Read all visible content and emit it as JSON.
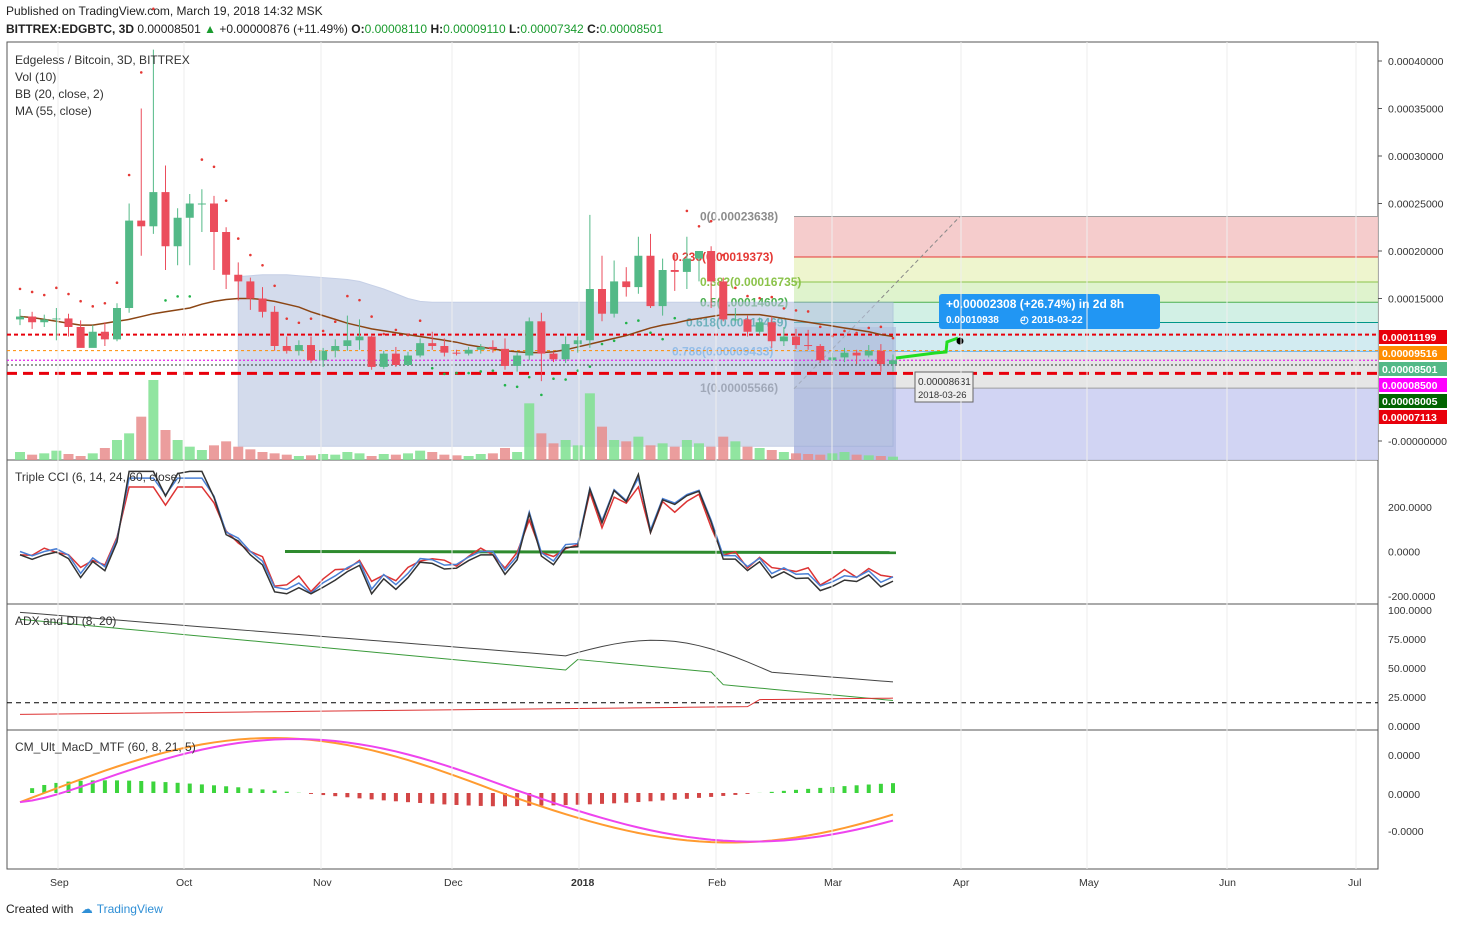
{
  "header": {
    "published": "Published on TradingView.com, March 19, 2018 14:32 MSK",
    "symbol": "BITTREX:EDGBTC, 3D",
    "last": "0.00008501",
    "change": "+0.00000876 (+11.49%)",
    "o_label": "O:",
    "o": "0.00008110",
    "h_label": "H:",
    "h": "0.00009110",
    "l_label": "L:",
    "l": "0.00007342",
    "c_label": "C:",
    "c": "0.00008501"
  },
  "legend": {
    "title": "Edgeless / Bitcoin, 3D, BITTREX",
    "vol": "Vol (10)",
    "bb": "BB (20, close, 2)",
    "ma": "MA (55, close)"
  },
  "panes": {
    "cci": "Triple CCI (6, 14, 24, 60, close)",
    "adx": "ADX and DI (8, 20)",
    "macd": "CM_Ult_MacD_MTF (60, 8, 21, 5)"
  },
  "colors": {
    "up": "#53b987",
    "down": "#eb4d5c",
    "ma": "#8b4513",
    "bb_fill": "#b7c4e0",
    "accent": "#2196f3"
  },
  "price_axis": {
    "min": -2e-05,
    "max": 0.00042,
    "ticks": [
      "0.00040000",
      "0.00035000",
      "0.00030000",
      "0.00025000",
      "0.00020000",
      "0.00015000",
      "-0.00000000"
    ],
    "tick_values": [
      0.0004,
      0.00035,
      0.0003,
      0.00025,
      0.0002,
      0.00015,
      0
    ]
  },
  "price_tags": [
    {
      "text": "0.00011199",
      "bg": "#e8000b"
    },
    {
      "text": "0.00009516",
      "bg": "#ff8c00"
    },
    {
      "text": "0.00008501",
      "bg": "#53b987"
    },
    {
      "text": "0.00008500",
      "bg": "#ff00ff"
    },
    {
      "text": "0.00008005",
      "bg": "#006400"
    },
    {
      "text": "0.00007113",
      "bg": "#e8000b"
    }
  ],
  "fib_labels": [
    {
      "text": "0(0.00023638)",
      "color": "#8c8c8c"
    },
    {
      "text": "0.236(0.00019373)",
      "color": "#e53935"
    },
    {
      "text": "0.382(0.00016735)",
      "color": "#8bc34a"
    },
    {
      "text": "0.5(0.00014602)",
      "color": "#4caf50"
    },
    {
      "text": "0.618(0.00012469)",
      "color": "#009688"
    },
    {
      "text": "0.786(0.00009433)",
      "color": "#64b5f6"
    },
    {
      "text": "1(0.00005566)",
      "color": "#7e7e7e"
    }
  ],
  "projection": {
    "line1": "+0.00002308 (+26.74%) in 2d 8h",
    "price": "0.00010938",
    "date": "2018-03-22"
  },
  "cursor_box": {
    "price": "0.00008631",
    "date": "2018-03-26"
  },
  "cci_axis": [
    "200.0000",
    "0.0000",
    "-200.0000"
  ],
  "adx_axis": [
    "100.0000",
    "75.0000",
    "50.0000",
    "25.0000",
    "0.0000"
  ],
  "macd_axis": [
    "0.0000",
    "0.0000",
    "-0.0000"
  ],
  "time_axis": [
    "Sep",
    "Oct",
    "Nov",
    "Dec",
    "2018",
    "Feb",
    "Mar",
    "Apr",
    "May",
    "Jun",
    "Jul"
  ],
  "chart_data": {
    "type": "candlestick",
    "title": "Edgeless / Bitcoin, 3D, BITTREX",
    "ylim": [
      -2e-05,
      0.00042
    ],
    "candles": [
      [
        0.000128,
        0.000139,
        0.000122,
        0.000131
      ],
      [
        0.000131,
        0.000136,
        0.000118,
        0.000125
      ],
      [
        0.000125,
        0.000133,
        0.00012,
        0.000128
      ],
      [
        0.000128,
        0.00014,
        0.000106,
        0.000129
      ],
      [
        0.000129,
        0.000134,
        0.00011,
        0.00012
      ],
      [
        0.00012,
        0.000127,
        0.000102,
        9.8e-05
      ],
      [
        9.8e-05,
        0.000122,
        9.9e-05,
        0.000115
      ],
      [
        0.000115,
        0.000125,
        0.0001,
        0.000107
      ],
      [
        0.000107,
        0.000145,
        0.000105,
        0.00014
      ],
      [
        0.00014,
        0.00025,
        0.000135,
        0.000232
      ],
      [
        0.000232,
        0.00035,
        0.000195,
        0.000226
      ],
      [
        0.000226,
        0.000412,
        0.000218,
        0.000262
      ],
      [
        0.000262,
        0.00029,
        0.00018,
        0.000205
      ],
      [
        0.000205,
        0.000245,
        0.000185,
        0.000235
      ],
      [
        0.000235,
        0.00026,
        0.000185,
        0.00025
      ],
      [
        0.00025,
        0.000265,
        0.00022,
        0.00025
      ],
      [
        0.00025,
        0.000258,
        0.00018,
        0.00022
      ],
      [
        0.00022,
        0.000225,
        0.00016,
        0.000175
      ],
      [
        0.000175,
        0.000188,
        0.000148,
        0.000168
      ],
      [
        0.000168,
        0.000172,
        0.000138,
        0.00015
      ],
      [
        0.00015,
        0.000162,
        0.00013,
        0.000136
      ],
      [
        0.000136,
        0.000142,
        9.5e-05,
        0.0001
      ],
      [
        0.0001,
        0.00011,
        9.2e-05,
        9.5e-05
      ],
      [
        9.5e-05,
        0.000106,
        9e-05,
        0.000101
      ],
      [
        0.000101,
        0.00011,
        8.2e-05,
        8.5e-05
      ],
      [
        8.5e-05,
        9.8e-05,
        7.8e-05,
        9.5e-05
      ],
      [
        9.5e-05,
        0.000107,
        8.8e-05,
        0.0001
      ],
      [
        0.0001,
        0.000132,
        9.5e-05,
        0.000106
      ],
      [
        0.000106,
        0.000128,
        9.6e-05,
        0.00011
      ],
      [
        0.00011,
        0.000112,
        7.5e-05,
        7.8e-05
      ],
      [
        7.8e-05,
        9.5e-05,
        7.6e-05,
        9.2e-05
      ],
      [
        9.2e-05,
        9.9e-05,
        7.8e-05,
        8e-05
      ],
      [
        8e-05,
        9.4e-05,
        7.9e-05,
        9e-05
      ],
      [
        9e-05,
        0.000108,
        8.8e-05,
        0.000103
      ],
      [
        0.000103,
        0.000115,
        9.6e-05,
        0.0001
      ],
      [
        0.0001,
        0.000108,
        8.9e-05,
        9.3e-05
      ],
      [
        9.3e-05,
        9.6e-05,
        9e-05,
        9.2e-05
      ],
      [
        9.2e-05,
        9.9e-05,
        9e-05,
        9.6e-05
      ],
      [
        9.6e-05,
        0.000102,
        9.2e-05,
        9.9e-05
      ],
      [
        9.9e-05,
        0.000106,
        9.3e-05,
        9.7e-05
      ],
      [
        9.7e-05,
        0.000108,
        7.5e-05,
        7.9e-05
      ],
      [
        7.9e-05,
        9.4e-05,
        7.3e-05,
        9e-05
      ],
      [
        9e-05,
        0.00013,
        8.5e-05,
        0.000126
      ],
      [
        0.000126,
        0.000135,
        6.3e-05,
        9.2e-05
      ],
      [
        9.2e-05,
        9.4e-05,
        8.3e-05,
        8.6e-05
      ],
      [
        8.6e-05,
        0.00011,
        8.2e-05,
        0.000102
      ],
      [
        0.000102,
        0.00011,
        9.3e-05,
        0.000106
      ],
      [
        0.000106,
        0.000238,
        9.8e-05,
        0.00016
      ],
      [
        0.00016,
        0.000195,
        0.000126,
        0.000134
      ],
      [
        0.000134,
        0.00019,
        0.00013,
        0.000168
      ],
      [
        0.000168,
        0.000183,
        0.000152,
        0.000162
      ],
      [
        0.000162,
        0.000215,
        0.000155,
        0.000195
      ],
      [
        0.000195,
        0.000218,
        0.00014,
        0.000142
      ],
      [
        0.000142,
        0.000192,
        0.000132,
        0.00018
      ],
      [
        0.00018,
        0.000196,
        0.000158,
        0.000178
      ],
      [
        0.000178,
        0.000215,
        0.00016,
        0.000192
      ],
      [
        0.000192,
        0.0002,
        0.000168,
        0.0002
      ],
      [
        0.0002,
        0.000205,
        0.00014,
        0.000168
      ],
      [
        0.000168,
        0.000172,
        0.000126,
        0.000128
      ],
      [
        0.000128,
        0.00014,
        0.000126,
        0.000128
      ],
      [
        0.000128,
        0.000132,
        0.00011,
        0.000115
      ],
      [
        0.000115,
        0.00013,
        0.000112,
        0.000125
      ],
      [
        0.000125,
        0.000131,
        9.8e-05,
        0.000105
      ],
      [
        0.000105,
        0.00012,
        0.0001,
        0.00011
      ],
      [
        0.00011,
        0.000118,
        9.7e-05,
        0.000101
      ],
      [
        0.000101,
        0.000117,
        9.6e-05,
        0.0001
      ],
      [
        0.0001,
        0.000102,
        8.2e-05,
        8.5e-05
      ],
      [
        8.5e-05,
        9.3e-05,
        8.2e-05,
        8.8e-05
      ],
      [
        8.8e-05,
        9.8e-05,
        8.3e-05,
        9.3e-05
      ],
      [
        9.3e-05,
        9.6e-05,
        8.1e-05,
        9e-05
      ],
      [
        9e-05,
        0.000101,
        8.8e-05,
        9.5e-05
      ],
      [
        9.5e-05,
        0.000102,
        7.3e-05,
        8.1e-05
      ],
      [
        8.1e-05,
        9.1e-05,
        7.3e-05,
        8.5e-05
      ]
    ],
    "bb_upper": [
      null,
      null,
      null,
      null,
      null,
      null,
      null,
      null,
      null,
      null,
      null,
      null,
      null,
      null,
      null,
      null,
      null,
      null,
      0.000173,
      0.000174,
      0.000175,
      0.000175,
      0.000175,
      0.000174,
      0.000173,
      0.000172,
      0.000171,
      0.00017,
      0.000168,
      0.000164,
      0.00016,
      0.000155,
      0.00015,
      0.000147,
      0.000146,
      0.000146,
      0.000146,
      0.000146,
      0.000146,
      0.000146,
      0.000146,
      0.000146,
      0.000146,
      0.000146,
      0.000146,
      0.000146,
      0.000146,
      0.000146,
      0.000146,
      0.000146,
      0.000146,
      0.000146,
      0.000146,
      0.000146,
      0.000146,
      0.000146,
      0.000146,
      0.000146,
      0.000146,
      0.000146,
      0.000146,
      0.000146,
      0.000146,
      0.000146,
      0.000146,
      0.000146,
      0.000146,
      0.000146,
      0.000146,
      0.000146,
      0.000146,
      0.000146,
      0.000146
    ],
    "ma55": [
      0.000131,
      0.00013,
      0.000128,
      0.000126,
      0.000124,
      0.000122,
      0.000122,
      0.000124,
      0.000126,
      0.000128,
      0.000131,
      0.000134,
      0.000136,
      0.000138,
      0.00014,
      0.000144,
      0.000147,
      0.000149,
      0.00015,
      0.00015,
      0.000149,
      0.000147,
      0.000144,
      0.000141,
      0.000136,
      0.000132,
      0.000128,
      0.000124,
      0.000121,
      0.000118,
      0.000116,
      0.000114,
      0.000112,
      0.00011,
      0.000108,
      0.000106,
      0.000104,
      0.000101,
      9.9e-05,
      9.7e-05,
      9.5e-05,
      9.4e-05,
      9.3e-05,
      9.3e-05,
      9.4e-05,
      9.6e-05,
      9.9e-05,
      0.000102,
      0.000105,
      0.000108,
      0.000111,
      0.000115,
      0.000119,
      0.000122,
      0.000124,
      0.000127,
      0.000129,
      0.000131,
      0.000133,
      0.000133,
      0.000133,
      0.000133,
      0.000131,
      0.000129,
      0.000127,
      0.000125,
      0.000123,
      0.000121,
      0.000119,
      0.000117,
      0.000115,
      0.000112,
      0.00011
    ],
    "volume": [
      12,
      8,
      10,
      14,
      9,
      6,
      10,
      18,
      30,
      40,
      65,
      120,
      45,
      30,
      20,
      15,
      22,
      28,
      20,
      16,
      12,
      10,
      8,
      6,
      7,
      9,
      8,
      12,
      10,
      6,
      9,
      8,
      10,
      14,
      12,
      8,
      7,
      6,
      9,
      10,
      18,
      12,
      85,
      40,
      25,
      30,
      22,
      100,
      50,
      30,
      28,
      35,
      22,
      25,
      20,
      30,
      25,
      20,
      35,
      28,
      20,
      18,
      15,
      12,
      10,
      9,
      8,
      10,
      12,
      8,
      7,
      6,
      5
    ]
  }
}
